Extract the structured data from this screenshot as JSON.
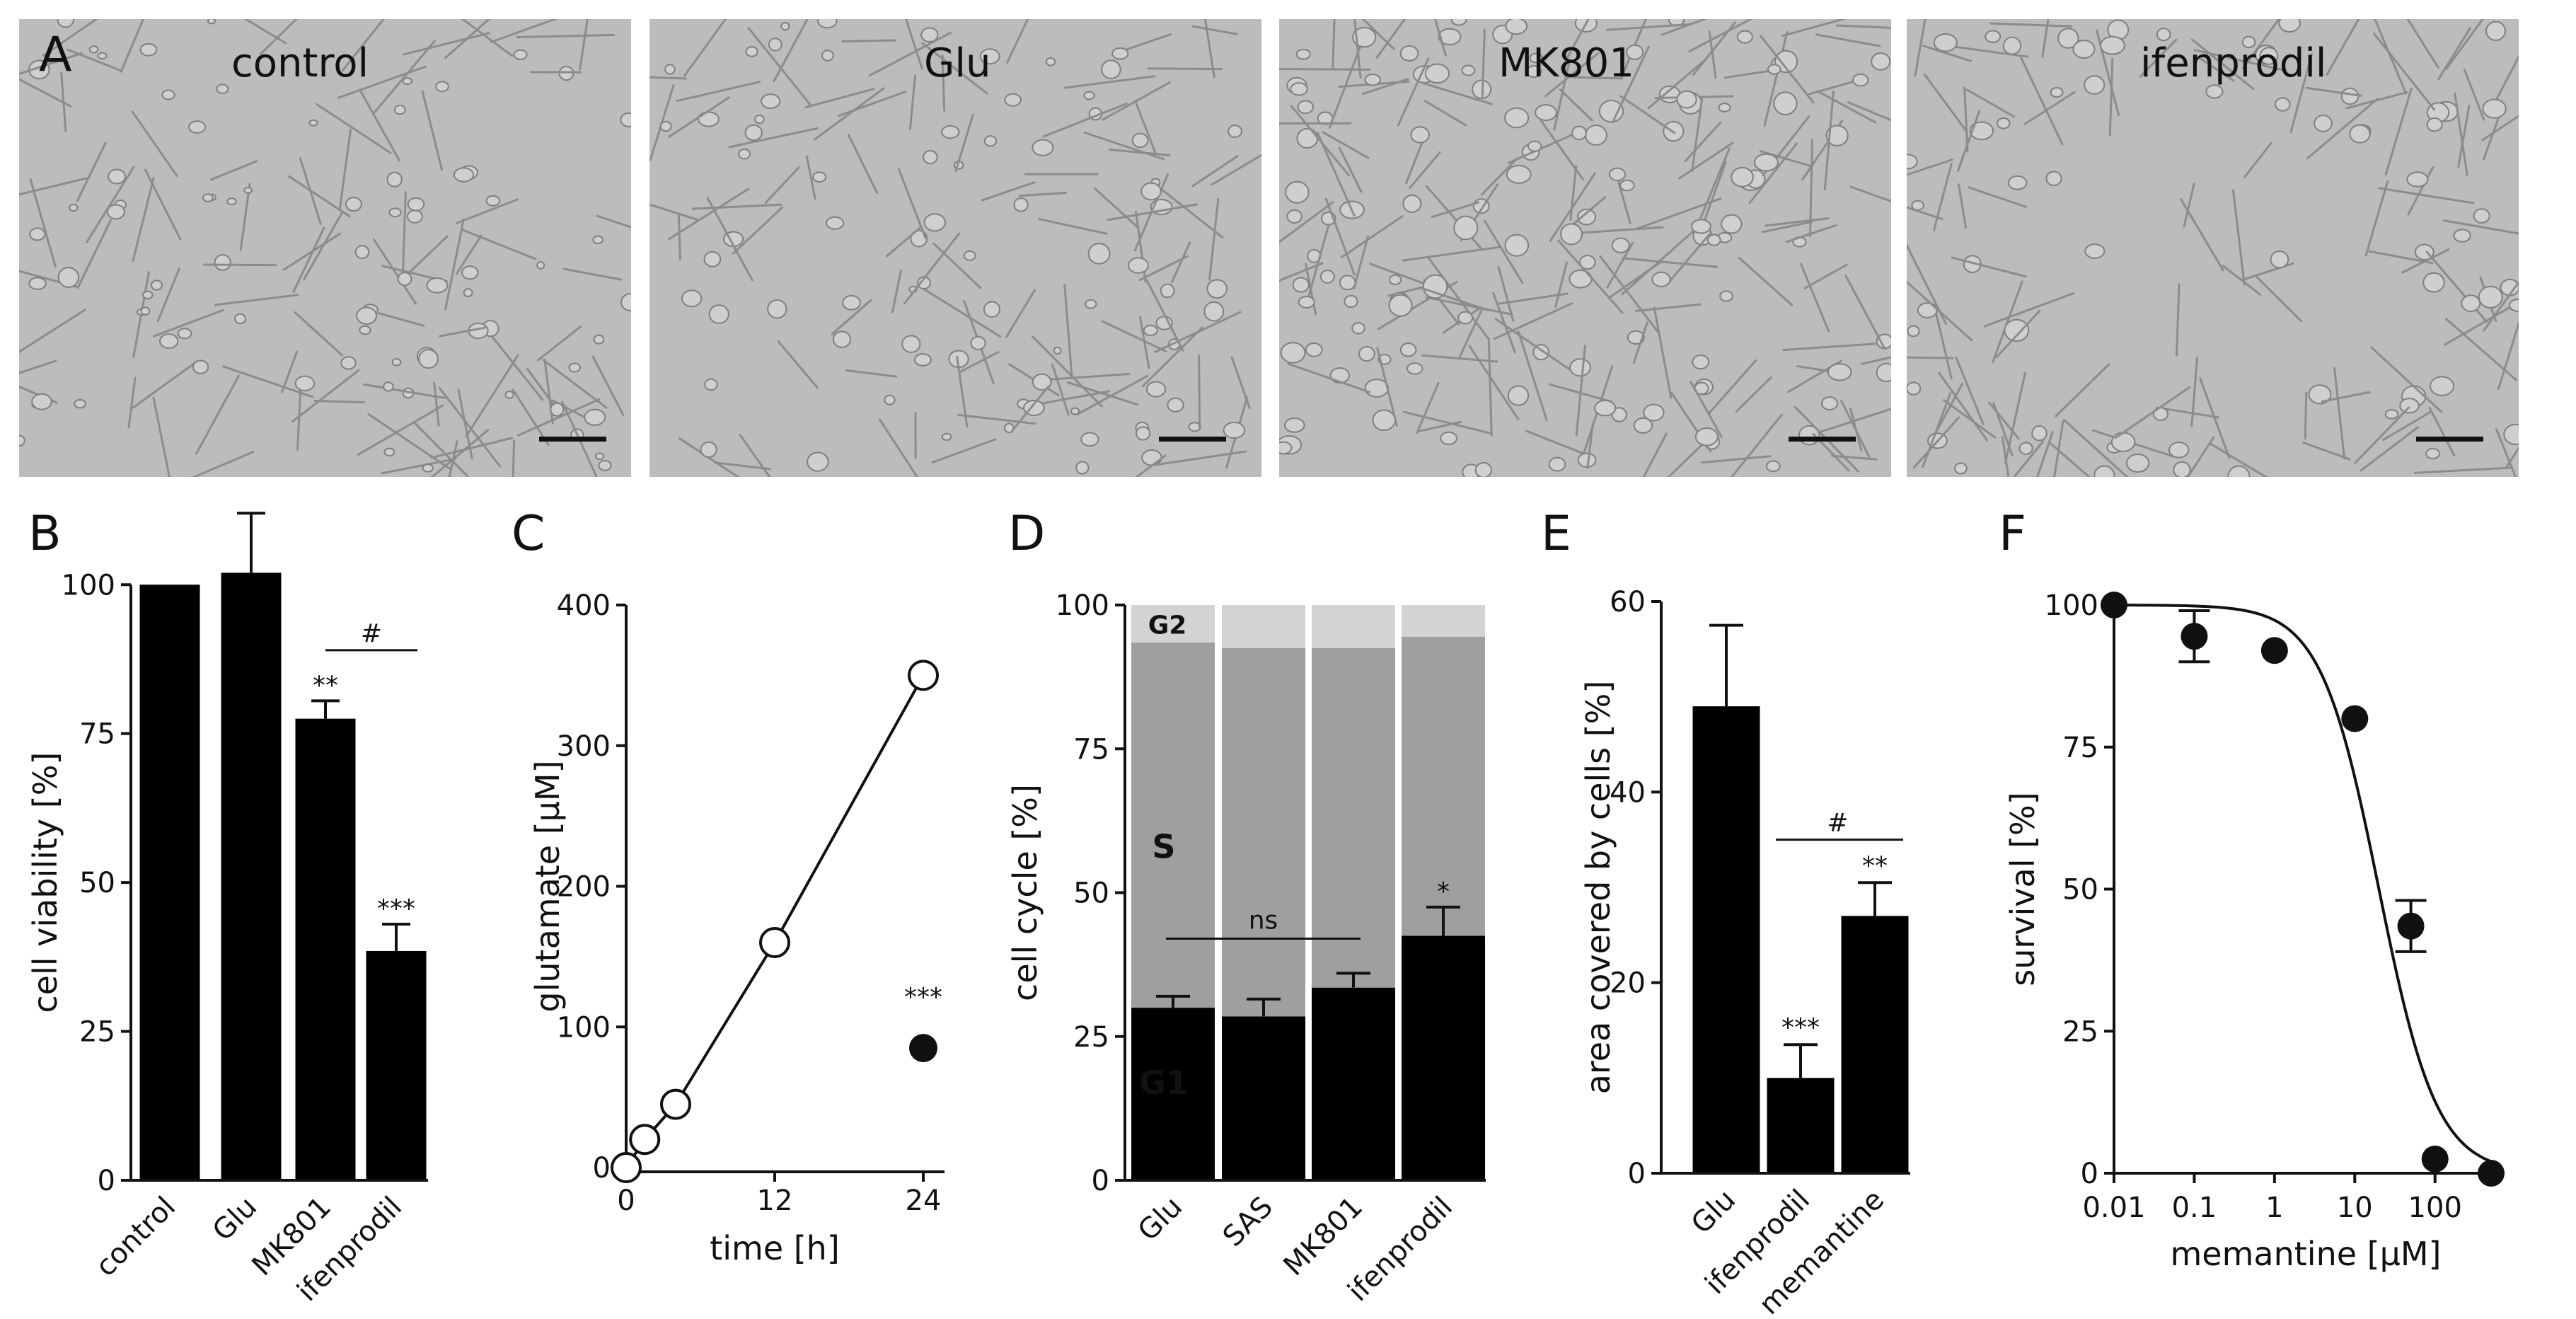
{
  "panel_letters": [
    "A",
    "B",
    "C",
    "D",
    "E",
    "F"
  ],
  "micrographs": [
    {
      "label": "control",
      "density": "medium"
    },
    {
      "label": "Glu",
      "density": "medium"
    },
    {
      "label": "MK801",
      "density": "high"
    },
    {
      "label": "ifenprodil",
      "density": "sparse"
    }
  ],
  "chart_data": [
    {
      "panel": "B",
      "type": "bar",
      "categories": [
        "control",
        "Glu",
        "MK801",
        "ifenprodil"
      ],
      "values": [
        100,
        102,
        77.5,
        38.5
      ],
      "errors": [
        0,
        10,
        3,
        4.5
      ],
      "ylabel": "cell viability  [%]",
      "ylim": [
        0,
        115
      ],
      "yticks": [
        0,
        25,
        50,
        75,
        100
      ],
      "annotations": [
        {
          "cat": 1,
          "text": ""
        },
        {
          "cat": 2,
          "text": "**"
        },
        {
          "cat": 3,
          "text": "***"
        }
      ],
      "bracket": {
        "from": 2,
        "to": 3,
        "y": 89,
        "text": "#"
      },
      "color": "#000000"
    },
    {
      "panel": "C",
      "type": "scatter",
      "series": [
        {
          "marker": "open",
          "connected": true,
          "x": [
            0,
            1.5,
            4,
            12,
            24
          ],
          "y": [
            0,
            20,
            45,
            160,
            350
          ]
        },
        {
          "marker": "filled",
          "connected": false,
          "x": [
            24
          ],
          "y": [
            85
          ]
        }
      ],
      "annotation": {
        "x": 24,
        "y": 85,
        "text": "***"
      },
      "xlabel": "time [h]",
      "ylabel": "glutamate  [µM]",
      "xlim": [
        0,
        26
      ],
      "ylim": [
        0,
        400
      ],
      "xticks": [
        0,
        12,
        24
      ],
      "yticks": [
        0,
        100,
        200,
        300,
        400
      ]
    },
    {
      "panel": "D",
      "type": "bar",
      "categories": [
        "Glu",
        "SAS",
        "MK801",
        "ifenprodil"
      ],
      "stacked": true,
      "series": [
        {
          "name": "G1",
          "values": [
            30,
            28.5,
            33.5,
            42.5
          ],
          "errors": [
            2,
            3,
            2.5,
            5
          ],
          "color": "#000000"
        },
        {
          "name": "S",
          "values": [
            63.5,
            64,
            59,
            52
          ],
          "color": "#9f9f9f"
        },
        {
          "name": "G2",
          "values": [
            6.5,
            7.5,
            7.5,
            5.5
          ],
          "color": "#d3d3d3"
        }
      ],
      "annotations": [
        {
          "cat": 3,
          "text": "*"
        }
      ],
      "bracket": {
        "from": 0,
        "to": 2,
        "y": 42,
        "text": "ns"
      },
      "ylabel": "cell cycle  [%]",
      "ylim": [
        0,
        100
      ],
      "yticks": [
        0,
        25,
        50,
        75,
        100
      ]
    },
    {
      "panel": "E",
      "type": "bar",
      "categories": [
        "Glu",
        "ifenprodil",
        "memantine"
      ],
      "values": [
        49,
        10,
        27
      ],
      "errors": [
        8.5,
        3.5,
        3.5
      ],
      "annotations": [
        {
          "cat": 1,
          "text": "***"
        },
        {
          "cat": 2,
          "text": "**"
        }
      ],
      "bracket": {
        "from": 1,
        "to": 2,
        "y": 35,
        "text": "#"
      },
      "ylabel": "area covered by cells  [%]",
      "ylim": [
        0,
        60
      ],
      "yticks": [
        0,
        20,
        40,
        60
      ],
      "color": "#000000"
    },
    {
      "panel": "F",
      "type": "scatter",
      "x": [
        0.01,
        0.1,
        1,
        10,
        50,
        100,
        500
      ],
      "y": [
        100,
        94.5,
        92,
        80,
        43.5,
        2.5,
        0
      ],
      "errors": [
        0,
        4.5,
        0,
        0,
        4.5,
        0,
        0
      ],
      "fit": {
        "top": 100,
        "ic50": 20,
        "hill": 1.2
      },
      "xscale": "log",
      "xlim": [
        0.01,
        600
      ],
      "ylim": [
        0,
        100
      ],
      "xticks": [
        0.01,
        0.1,
        1,
        10,
        100
      ],
      "xticklabels": [
        "0.01",
        "0.1",
        "1",
        "10",
        "100"
      ],
      "yticks": [
        0,
        25,
        50,
        75,
        100
      ],
      "xlabel": "memantine [µM]",
      "ylabel": "survival [%]"
    }
  ]
}
